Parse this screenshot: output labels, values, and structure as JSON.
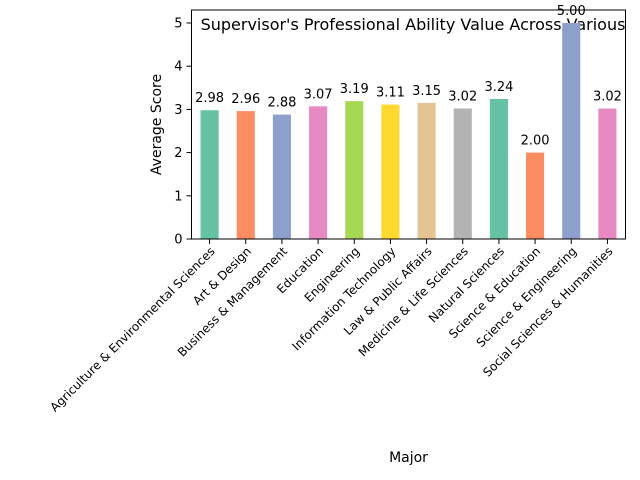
{
  "chart_data": {
    "type": "bar",
    "title": "Supervisor's Professional Ability Value Across Various",
    "xlabel": "Major",
    "ylabel": "Average Score",
    "ylim": [
      0,
      5.3
    ],
    "yticks": [
      "0",
      "1",
      "2",
      "3",
      "4",
      "5"
    ],
    "grid": false,
    "legend": "none",
    "categories": [
      "Agriculture & Environmental Sciences",
      "Art & Design",
      "Business & Management",
      "Education",
      "Engineering",
      "Information Technology",
      "Law & Public Affairs",
      "Medicine & Life Sciences",
      "Natural Sciences",
      "Science & Education",
      "Science & Engineering",
      "Social Sciences & Humanities"
    ],
    "values": [
      2.98,
      2.96,
      2.88,
      3.07,
      3.19,
      3.11,
      3.15,
      3.02,
      3.24,
      2.0,
      5.0,
      3.02
    ],
    "value_labels": [
      "2.98",
      "2.96",
      "2.88",
      "3.07",
      "3.19",
      "3.11",
      "3.15",
      "3.02",
      "3.24",
      "2.00",
      "5.00",
      "3.02"
    ],
    "colors": [
      "#66c2a5",
      "#fc8d62",
      "#8da0cb",
      "#e78ac3",
      "#a6d854",
      "#ffd92f",
      "#e5c494",
      "#b3b3b3",
      "#66c2a5",
      "#fc8d62",
      "#8da0cb",
      "#e78ac3"
    ]
  }
}
